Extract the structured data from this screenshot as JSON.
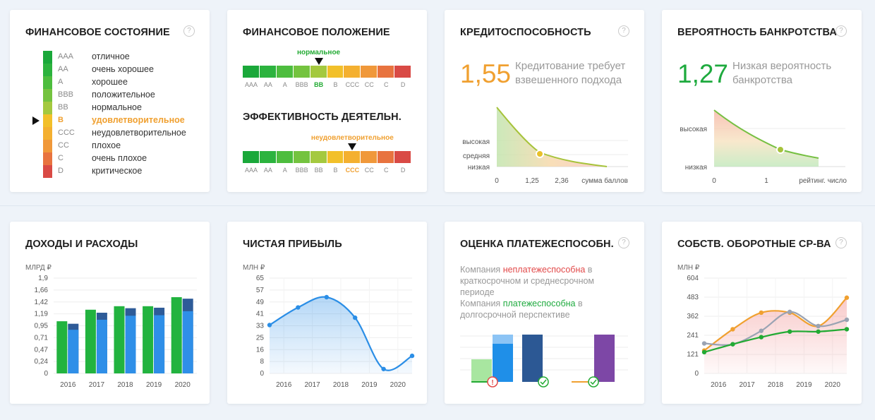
{
  "cards": {
    "fin_state": {
      "title": "ФИНАНСОВОЕ СОСТОЯНИЕ",
      "active": "B",
      "items": [
        {
          "code": "AAA",
          "label": "отличное",
          "color": "#1aa83a"
        },
        {
          "code": "AA",
          "label": "очень хорошее",
          "color": "#2cb33e"
        },
        {
          "code": "A",
          "label": "хорошее",
          "color": "#4dbd3e"
        },
        {
          "code": "BBB",
          "label": "положительное",
          "color": "#74c33f"
        },
        {
          "code": "BB",
          "label": "нормальное",
          "color": "#a4c93f"
        },
        {
          "code": "B",
          "label": "удовлетворительное",
          "color": "#f2c02a"
        },
        {
          "code": "CCC",
          "label": "неудовлетворительное",
          "color": "#f4b030"
        },
        {
          "code": "CC",
          "label": "плохое",
          "color": "#f0983a"
        },
        {
          "code": "C",
          "label": "очень плохое",
          "color": "#e8733f"
        },
        {
          "code": "D",
          "label": "критическое",
          "color": "#d94a45"
        }
      ]
    },
    "fin_position": {
      "title": "ФИНАНСОВОЕ ПОЛОЖЕНИЕ",
      "marker_label": "нормальное",
      "marker_index": 4,
      "scale_codes": [
        "AAA",
        "AA",
        "A",
        "BBB",
        "BB",
        "B",
        "CCC",
        "CC",
        "C",
        "D"
      ]
    },
    "efficiency": {
      "title": "ЭФФЕКТИВНОСТЬ ДЕЯТЕЛЬН.",
      "marker_label": "неудовлетворительное",
      "marker_index": 6,
      "scale_codes": [
        "AAA",
        "AA",
        "A",
        "BBB",
        "BB",
        "B",
        "CCC",
        "CC",
        "C",
        "D"
      ]
    },
    "creditworthiness": {
      "title": "КРЕДИТОСПОСОБНОСТЬ",
      "value": "1,55",
      "text_line1": "Кредитование требует",
      "text_line2": "взвешенного подхода",
      "levels": [
        "высокая",
        "средняя",
        "низкая"
      ],
      "x_ticks": [
        "0",
        "1,25",
        "2,36"
      ],
      "x_label": "сумма баллов",
      "color": "#f0a030"
    },
    "bankruptcy": {
      "title": "ВЕРОЯТНОСТЬ БАНКРОТСТВА",
      "value": "1,27",
      "text_line1": "Низкая вероятность",
      "text_line2": "банкротства",
      "levels": [
        "высокая",
        "низкая"
      ],
      "x_ticks": [
        "0",
        "1"
      ],
      "x_label": "рейтинг. число",
      "color": "#1eaa3e"
    },
    "income": {
      "title": "ДОХОДЫ И РАСХОДЫ",
      "unit": "МЛРД ₽"
    },
    "profit": {
      "title": "ЧИСТАЯ ПРИБЫЛЬ",
      "unit": "МЛН ₽"
    },
    "solvency": {
      "title": "ОЦЕНКА ПЛАТЕЖЕСПОСОБН.",
      "p1_a": "Компания ",
      "p1_b": "неплатежеспособна",
      "p1_c": " в краткосрочном и среднесрочном периоде",
      "p2_a": "Компания ",
      "p2_b": "платежеспособна",
      "p2_c": " в долгосрочной перспективе"
    },
    "working_capital": {
      "title": "СОБСТВ. ОБОРОТНЫЕ СР-ВА",
      "unit": "МЛН ₽"
    }
  },
  "chart_data": [
    {
      "type": "bar",
      "title": "ДОХОДЫ И РАСХОДЫ",
      "ylabel": "МЛРД ₽",
      "categories": [
        "2016",
        "2017",
        "2018",
        "2019",
        "2020"
      ],
      "y_ticks": [
        "0",
        "0,24",
        "0,47",
        "0,71",
        "0,95",
        "1,19",
        "1,42",
        "1,66",
        "1,9"
      ],
      "ylim": [
        0,
        1.9
      ],
      "series": [
        {
          "values": [
            1.04,
            1.27,
            1.34,
            1.34,
            1.52
          ],
          "color": "#22b33f"
        },
        {
          "values": [
            0.99,
            1.21,
            1.3,
            1.31,
            1.49
          ],
          "color": "#2e5b98"
        },
        {
          "values": [
            0.87,
            1.07,
            1.15,
            1.16,
            1.24
          ],
          "color": "#2f8fe8"
        }
      ]
    },
    {
      "type": "line",
      "title": "ЧИСТАЯ ПРИБЫЛЬ",
      "ylabel": "МЛН ₽",
      "x_ticks": [
        "2016",
        "2017",
        "2018",
        "2019",
        "2020"
      ],
      "y_ticks": [
        "0",
        "8",
        "16",
        "25",
        "33",
        "41",
        "49",
        "57",
        "65"
      ],
      "ylim": [
        0,
        65
      ],
      "points": [
        [
          2015.5,
          33
        ],
        [
          2016.5,
          45
        ],
        [
          2017.5,
          52
        ],
        [
          2018.5,
          38
        ],
        [
          2019.5,
          3
        ],
        [
          2020.5,
          12
        ]
      ],
      "color": "#2b8ee6"
    },
    {
      "type": "line",
      "title": "СОБСТВ. ОБОРОТНЫЕ СР-ВА",
      "ylabel": "МЛН ₽",
      "x_ticks": [
        "2016",
        "2017",
        "2018",
        "2019",
        "2020"
      ],
      "y_ticks": [
        "0",
        "121",
        "241",
        "362",
        "483",
        "604"
      ],
      "ylim": [
        0,
        604
      ],
      "series": [
        {
          "color": "#f0a030",
          "points": [
            [
              2015.5,
              145
            ],
            [
              2016.5,
              280
            ],
            [
              2017.5,
              385
            ],
            [
              2018.5,
              385
            ],
            [
              2019.5,
              300
            ],
            [
              2020.5,
              480
            ]
          ]
        },
        {
          "color": "#9aa3b3",
          "points": [
            [
              2015.5,
              190
            ],
            [
              2016.5,
              185
            ],
            [
              2017.5,
              270
            ],
            [
              2018.5,
              390
            ],
            [
              2019.5,
              300
            ],
            [
              2020.5,
              340
            ]
          ]
        },
        {
          "color": "#22aa33",
          "points": [
            [
              2015.5,
              135
            ],
            [
              2016.5,
              185
            ],
            [
              2017.5,
              230
            ],
            [
              2018.5,
              265
            ],
            [
              2019.5,
              265
            ],
            [
              2020.5,
              280
            ]
          ]
        }
      ]
    }
  ]
}
